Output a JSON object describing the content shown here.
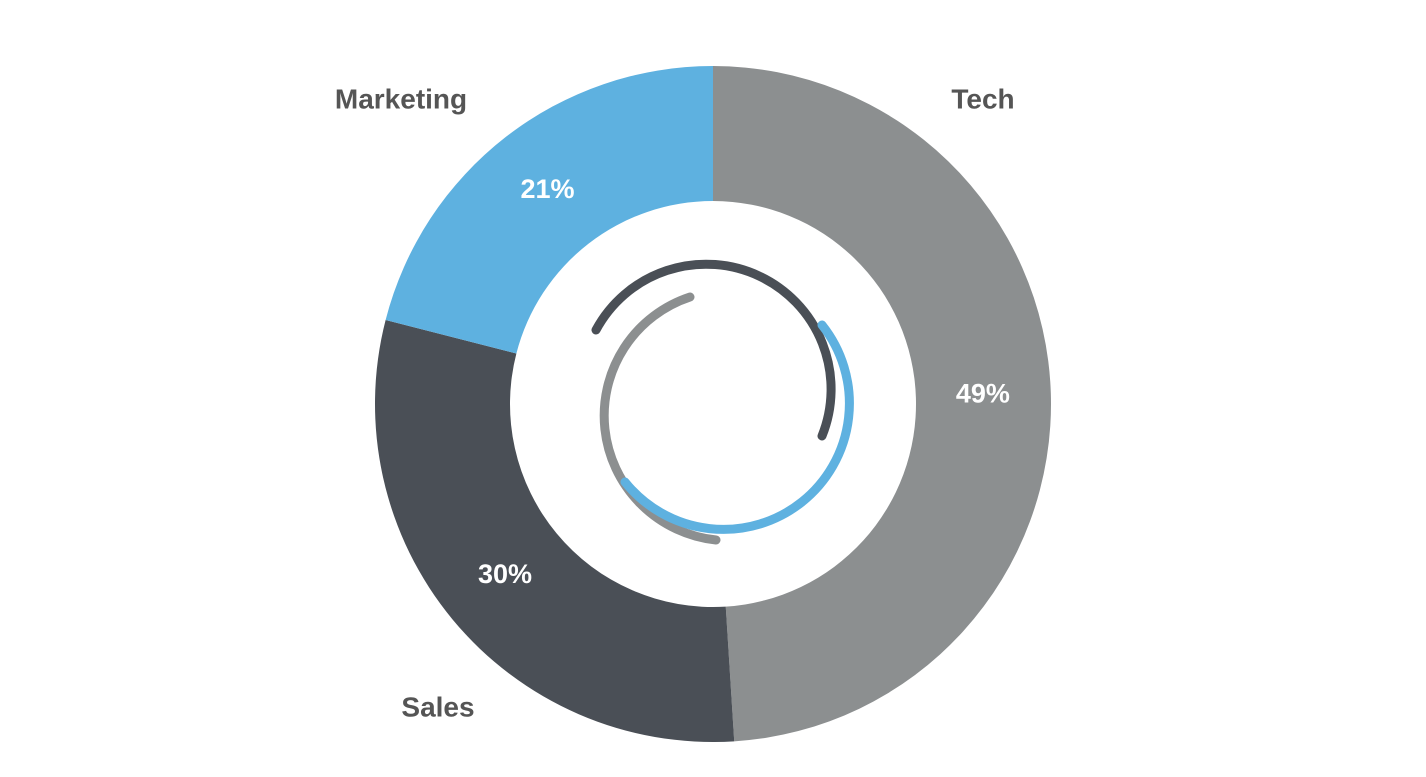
{
  "chart_data": {
    "type": "donut",
    "categories": [
      "Tech",
      "Sales",
      "Marketing"
    ],
    "values": [
      49,
      30,
      21
    ],
    "value_labels": [
      "49%",
      "30%",
      "21%"
    ],
    "colors": [
      "#8c8f90",
      "#4a4f56",
      "#5eb1e0"
    ]
  }
}
